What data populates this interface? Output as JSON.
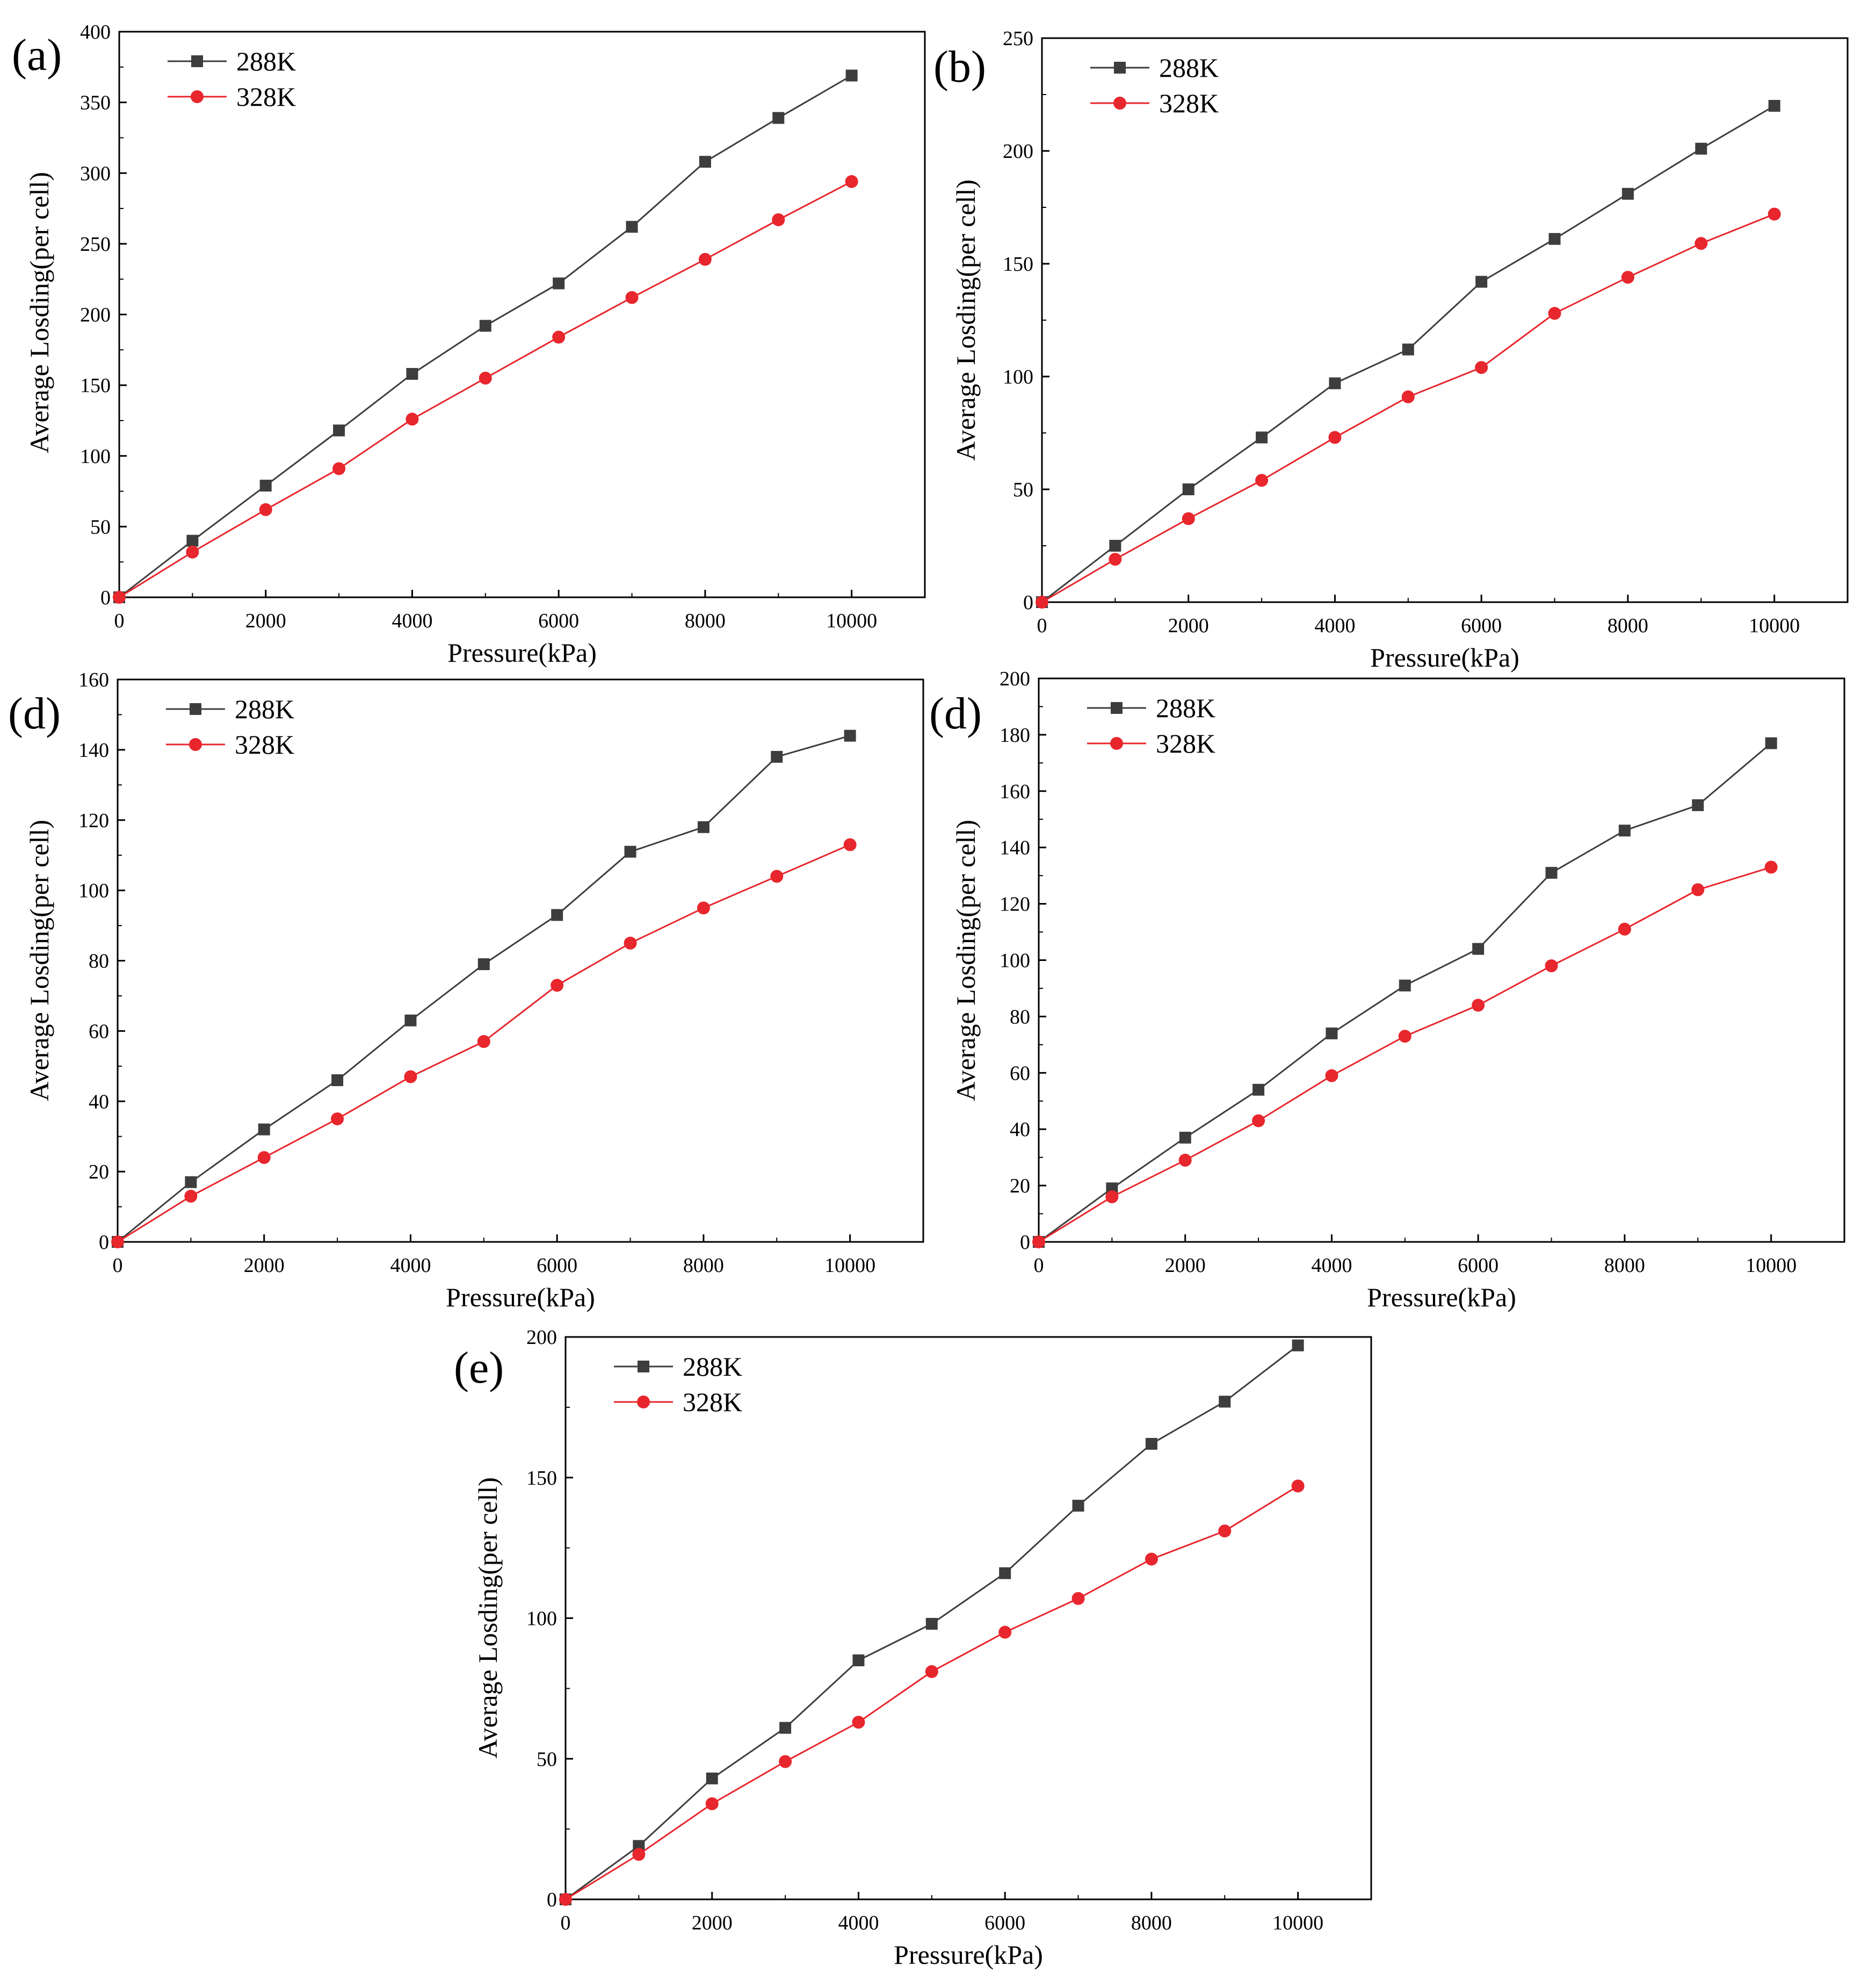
{
  "colors": {
    "s288": "#3d3d3d",
    "s328": "#e8262d",
    "axis": "#000000"
  },
  "chart_data": [
    {
      "type": "line",
      "panel_label": "(a)",
      "xlabel": "Pressure(kPa)",
      "ylabel": "Average Losding(per cell)",
      "xlim": [
        0,
        11000
      ],
      "ylim": [
        0,
        400
      ],
      "xticks": [
        0,
        2000,
        4000,
        6000,
        8000,
        10000
      ],
      "yticks": [
        0,
        50,
        100,
        150,
        200,
        250,
        300,
        350,
        400
      ],
      "x": [
        0,
        1000,
        2000,
        3000,
        4000,
        5000,
        6000,
        7000,
        8000,
        9000,
        10000
      ],
      "series": [
        {
          "name": "288K",
          "marker": "square",
          "values": [
            0,
            40,
            79,
            118,
            158,
            192,
            222,
            262,
            308,
            339,
            369
          ]
        },
        {
          "name": "328K",
          "marker": "circle",
          "values": [
            0,
            32,
            62,
            91,
            126,
            155,
            184,
            212,
            239,
            267,
            294
          ]
        }
      ],
      "legend": "top-left"
    },
    {
      "type": "line",
      "panel_label": "(b)",
      "xlabel": "Pressure(kPa)",
      "ylabel": "Average Losding(per cell)",
      "xlim": [
        0,
        11000
      ],
      "ylim": [
        0,
        250
      ],
      "xticks": [
        0,
        2000,
        4000,
        6000,
        8000,
        10000
      ],
      "yticks": [
        0,
        50,
        100,
        150,
        200,
        250
      ],
      "x": [
        0,
        1000,
        2000,
        3000,
        4000,
        5000,
        6000,
        7000,
        8000,
        9000,
        10000
      ],
      "series": [
        {
          "name": "288K",
          "marker": "square",
          "values": [
            0,
            25,
            50,
            73,
            97,
            112,
            142,
            161,
            181,
            201,
            220
          ]
        },
        {
          "name": "328K",
          "marker": "circle",
          "values": [
            0,
            19,
            37,
            54,
            73,
            91,
            104,
            128,
            144,
            159,
            172
          ]
        }
      ],
      "legend": "top-left"
    },
    {
      "type": "line",
      "panel_label": "(d)",
      "xlabel": "Pressure(kPa)",
      "ylabel": "Average Losding(per cell)",
      "xlim": [
        0,
        11000
      ],
      "ylim": [
        0,
        160
      ],
      "xticks": [
        0,
        2000,
        4000,
        6000,
        8000,
        10000
      ],
      "yticks": [
        0,
        20,
        40,
        60,
        80,
        100,
        120,
        140,
        160
      ],
      "x": [
        0,
        1000,
        2000,
        3000,
        4000,
        5000,
        6000,
        7000,
        8000,
        9000,
        10000
      ],
      "series": [
        {
          "name": "288K",
          "marker": "square",
          "values": [
            0,
            17,
            32,
            46,
            63,
            79,
            93,
            111,
            118,
            138,
            144
          ]
        },
        {
          "name": "328K",
          "marker": "circle",
          "values": [
            0,
            13,
            24,
            35,
            47,
            57,
            73,
            85,
            95,
            104,
            113
          ]
        }
      ],
      "legend": "top-left"
    },
    {
      "type": "line",
      "panel_label": "(d)",
      "xlabel": "Pressure(kPa)",
      "ylabel": "Average Losding(per cell)",
      "xlim": [
        0,
        11000
      ],
      "ylim": [
        0,
        200
      ],
      "xticks": [
        0,
        2000,
        4000,
        6000,
        8000,
        10000
      ],
      "yticks": [
        0,
        20,
        40,
        60,
        80,
        100,
        120,
        140,
        160,
        180,
        200
      ],
      "x": [
        0,
        1000,
        2000,
        3000,
        4000,
        5000,
        6000,
        7000,
        8000,
        9000,
        10000
      ],
      "series": [
        {
          "name": "288K",
          "marker": "square",
          "values": [
            0,
            19,
            37,
            54,
            74,
            91,
            104,
            131,
            146,
            155,
            177
          ]
        },
        {
          "name": "328K",
          "marker": "circle",
          "values": [
            0,
            16,
            29,
            43,
            59,
            73,
            84,
            98,
            111,
            125,
            133
          ]
        }
      ],
      "legend": "top-left"
    },
    {
      "type": "line",
      "panel_label": "(e)",
      "xlabel": "Pressure(kPa)",
      "ylabel": "Average Losding(per cell)",
      "xlim": [
        0,
        11000
      ],
      "ylim": [
        0,
        200
      ],
      "xticks": [
        0,
        2000,
        4000,
        6000,
        8000,
        10000
      ],
      "yticks": [
        0,
        50,
        100,
        150,
        200
      ],
      "x": [
        0,
        1000,
        2000,
        3000,
        4000,
        5000,
        6000,
        7000,
        8000,
        9000,
        10000
      ],
      "series": [
        {
          "name": "288K",
          "marker": "square",
          "values": [
            0,
            19,
            43,
            61,
            85,
            98,
            116,
            140,
            162,
            177,
            197
          ]
        },
        {
          "name": "328K",
          "marker": "circle",
          "values": [
            0,
            16,
            34,
            49,
            63,
            81,
            95,
            107,
            121,
            131,
            147
          ]
        }
      ],
      "legend": "top-left"
    }
  ]
}
